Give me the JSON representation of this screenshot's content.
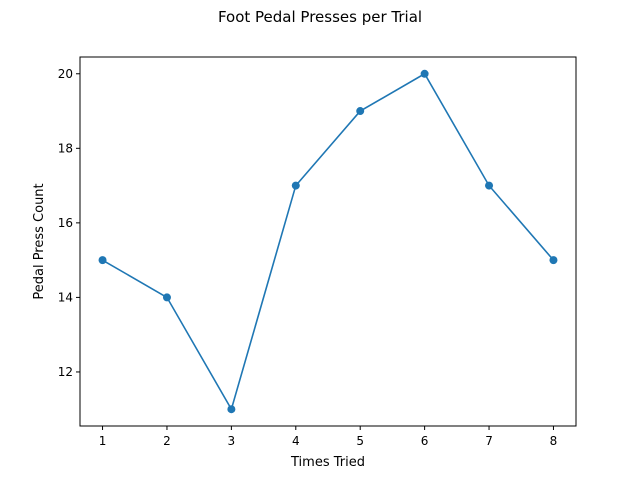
{
  "chart_data": {
    "type": "line",
    "title": "Foot Pedal Presses per Trial",
    "xlabel": "Times Tried",
    "ylabel": "Pedal Press Count",
    "x": [
      1,
      2,
      3,
      4,
      5,
      6,
      7,
      8
    ],
    "series": [
      {
        "values": [
          15,
          14,
          11,
          17,
          19,
          20,
          17,
          15
        ],
        "color": "#1f77b4"
      }
    ],
    "xticks": [
      1,
      2,
      3,
      4,
      5,
      6,
      7,
      8
    ],
    "yticks": [
      12,
      14,
      16,
      18,
      20
    ],
    "xlim": [
      0.65,
      8.35
    ],
    "ylim": [
      10.55,
      20.45
    ],
    "grid": false,
    "markers": "circle"
  }
}
